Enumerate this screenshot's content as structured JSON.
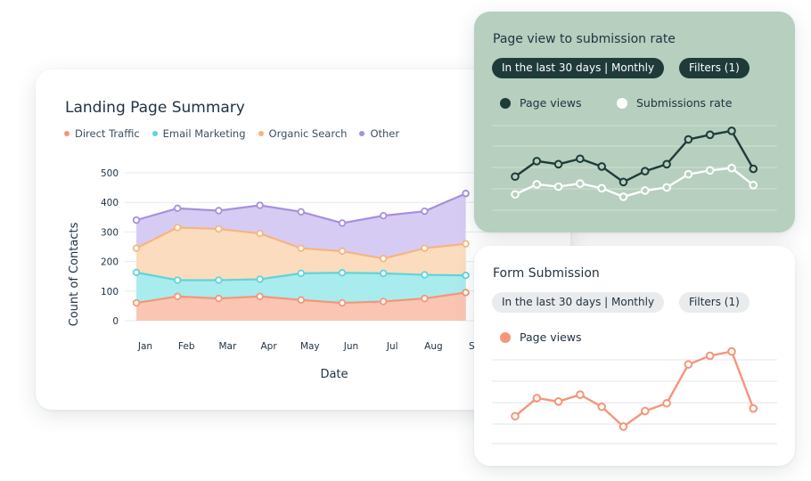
{
  "main": {
    "title": "Landing Page Summary",
    "legend": [
      {
        "label": "Direct Traffic",
        "color": "#f5957a"
      },
      {
        "label": "Email Marketing",
        "color": "#5fd5d9"
      },
      {
        "label": "Organic Search",
        "color": "#f6b57f"
      },
      {
        "label": "Other",
        "color": "#a78fe0"
      }
    ]
  },
  "rate_card": {
    "title": "Page view to submission rate",
    "period_pill": "In the last 30 days | Monthly",
    "filters_pill": "Filters (1)",
    "series": [
      {
        "label": "Page views",
        "color": "#1e3b39",
        "icon": "filled-dot"
      },
      {
        "label": "Submissions rate",
        "color": "#ffffff",
        "icon": "white-dot"
      }
    ]
  },
  "form_card": {
    "title": "Form Submission",
    "period_pill": "In the last 30 days | Monthly",
    "filters_pill": "Filters (1)",
    "series": [
      {
        "label": "Page views",
        "color": "#f5957a",
        "icon": "filled-dot"
      }
    ]
  },
  "chart_data": [
    {
      "type": "area",
      "stacked": false,
      "title": "Landing Page Summary",
      "xlabel": "Date",
      "ylabel": "Count of Contacts",
      "ylim": [
        0,
        500
      ],
      "yticks": [
        0,
        100,
        200,
        300,
        400,
        500
      ],
      "x": [
        "Jan",
        "Feb",
        "Mar",
        "Apr",
        "May",
        "Jun",
        "Jul",
        "Aug",
        "Se"
      ],
      "grid": true,
      "series": [
        {
          "name": "Other",
          "color": "#a78fe0",
          "values": [
            340,
            380,
            372,
            390,
            368,
            330,
            355,
            370,
            430
          ]
        },
        {
          "name": "Organic Search",
          "color": "#f6b57f",
          "values": [
            245,
            315,
            310,
            295,
            245,
            235,
            210,
            245,
            260
          ]
        },
        {
          "name": "Email Marketing",
          "color": "#5fd5d9",
          "values": [
            163,
            137,
            137,
            140,
            160,
            162,
            160,
            155,
            153
          ]
        },
        {
          "name": "Direct Traffic",
          "color": "#f5957a",
          "values": [
            60,
            82,
            75,
            82,
            70,
            60,
            65,
            75,
            95
          ]
        }
      ]
    },
    {
      "type": "line",
      "title": "Page view to submission rate",
      "grid": true,
      "series": [
        {
          "name": "Page views",
          "color": "#1e3b39",
          "values": [
            48,
            68,
            64,
            71,
            61,
            41,
            55,
            64,
            96,
            102,
            107,
            58
          ]
        },
        {
          "name": "Submissions rate",
          "color": "#ffffff",
          "values": [
            25,
            38,
            35,
            39,
            33,
            22,
            30,
            34,
            51,
            56,
            59,
            37
          ]
        }
      ]
    },
    {
      "type": "line",
      "title": "Form Submission",
      "grid": true,
      "series": [
        {
          "name": "Page views",
          "color": "#f5957a",
          "values": [
            42,
            63,
            59,
            67,
            53,
            30,
            48,
            57,
            102,
            112,
            117,
            51
          ]
        }
      ]
    }
  ]
}
